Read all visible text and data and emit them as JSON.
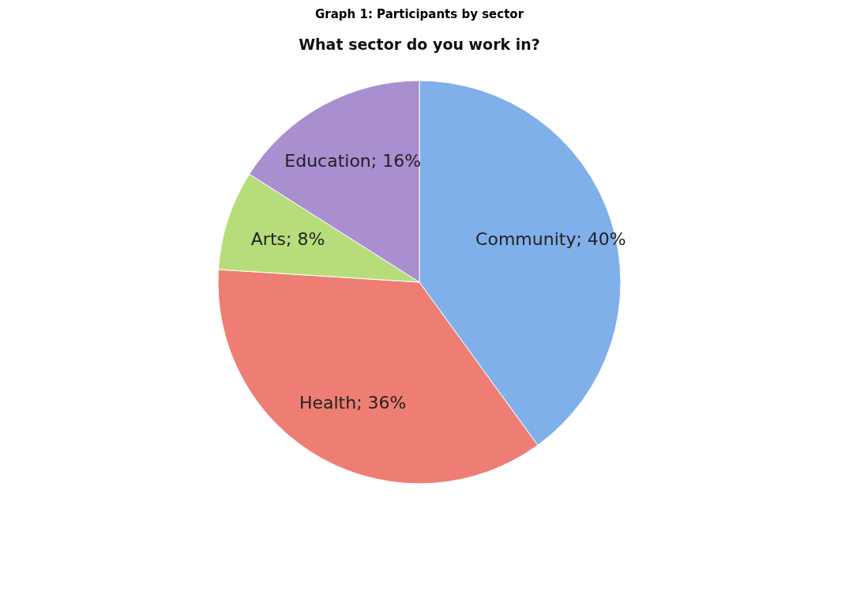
{
  "chart_data": {
    "type": "pie",
    "title": "Graph 1: Participants by sector",
    "subtitle": "What sector do you work in?",
    "categories": [
      "Community",
      "Health",
      "Arts",
      "Education"
    ],
    "values": [
      40,
      36,
      8,
      16
    ],
    "colors": [
      "#7fb0ea",
      "#ee7e74",
      "#b6dd7a",
      "#a98ed0"
    ],
    "value_labels": [
      "40%",
      "36%",
      "8%",
      "16%"
    ],
    "legend": false
  }
}
